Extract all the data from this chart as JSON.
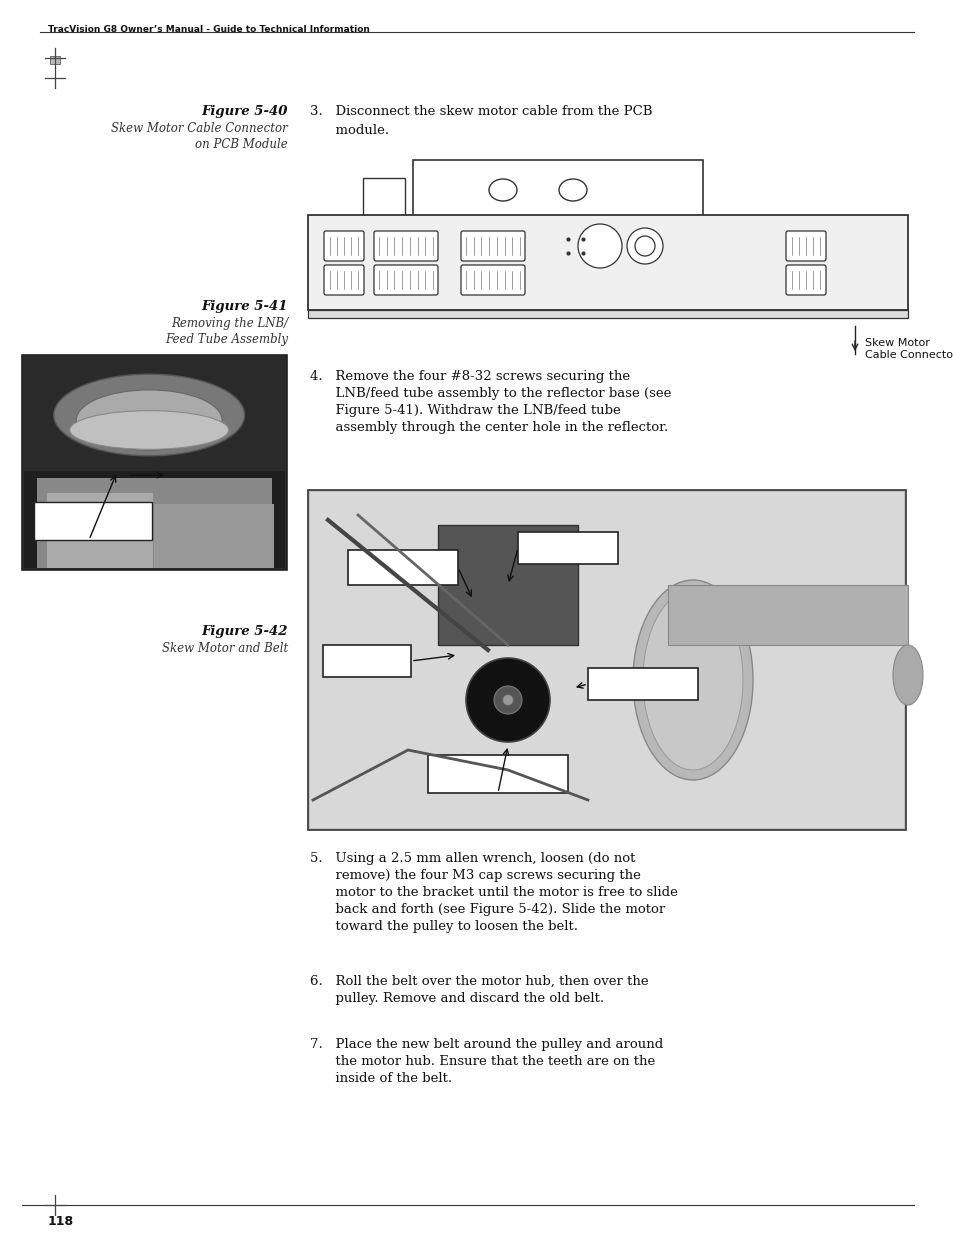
{
  "page_bg": "#ffffff",
  "header_text": "TracVision G8 Owner’s Manual - Guide to Technical Information",
  "page_number": "118",
  "fig40_title": "Figure 5-40",
  "fig40_caption_line1": "Skew Motor Cable Connector",
  "fig40_caption_line2": "on PCB Module",
  "fig41_title": "Figure 5-41",
  "fig41_caption_line1": "Removing the LNB/",
  "fig41_caption_line2": "Feed Tube Assembly",
  "fig42_title": "Figure 5-42",
  "fig42_caption": "Skew Motor and Belt",
  "skew_motor_label": "Skew Motor\nCable Connector",
  "step3": "3.   Disconnect the skew motor cable from the PCB\n      module.",
  "step4_1": "4.   Remove the four #8-32 screws securing the",
  "step4_2": "      LNB/feed tube assembly to the reflector base (see",
  "step4_3": "      Figure 5-41). Withdraw the LNB/feed tube",
  "step4_4": "      assembly through the center hole in the reflector.",
  "step5_1": "5.   Using a 2.5 mm allen wrench, loosen (do not",
  "step5_2": "      remove) the four M3 cap screws securing the",
  "step5_3": "      motor to the bracket until the motor is free to slide",
  "step5_4": "      back and forth (see Figure 5-42). Slide the motor",
  "step5_5": "      toward the pulley to loosen the belt.",
  "step6_1": "6.   Roll the belt over the motor hub, then over the",
  "step6_2": "      pulley. Remove and discard the old belt.",
  "step7_1": "7.   Place the new belt around the pulley and around",
  "step7_2": "      the motor hub. Ensure that the teeth are on the",
  "step7_3": "      inside of the belt.",
  "dark": "#222222",
  "mid": "#888888",
  "light": "#cccccc"
}
